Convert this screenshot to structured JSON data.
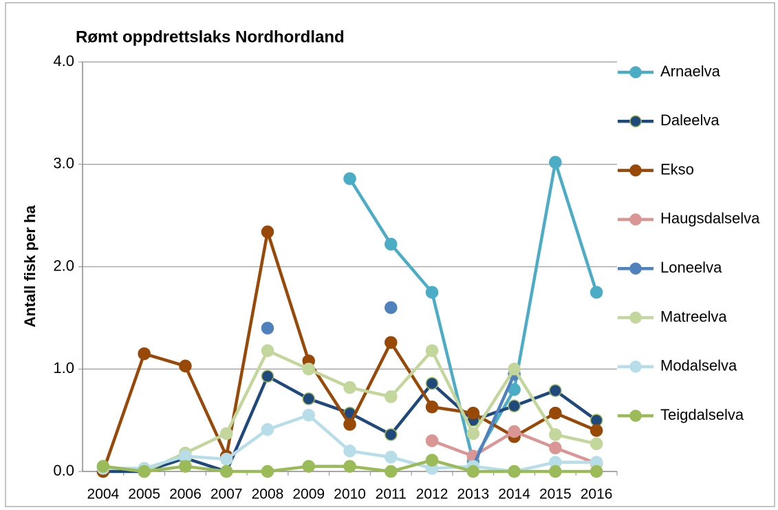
{
  "chart_data": {
    "type": "line",
    "title": "Rømt oppdrettslaks Nordhordland",
    "y_label": "Antall fisk per ha",
    "categories": [
      "2004",
      "2005",
      "2006",
      "2007",
      "2008",
      "2009",
      "2010",
      "2011",
      "2012",
      "2013",
      "2014",
      "2015",
      "2016"
    ],
    "ylim": [
      0,
      4
    ],
    "yticks": [
      {
        "value": 0,
        "label": "0.0"
      },
      {
        "value": 1,
        "label": "1.0"
      },
      {
        "value": 2,
        "label": "2.0"
      },
      {
        "value": 3,
        "label": "3.0"
      },
      {
        "value": 4,
        "label": "4.0"
      }
    ],
    "grid": true,
    "legend": "right",
    "series": [
      {
        "name": "Arnaelva",
        "color": "#4bacc6",
        "values": [
          null,
          null,
          null,
          null,
          null,
          null,
          2.86,
          2.22,
          1.75,
          0.1,
          0.8,
          3.02,
          1.75
        ]
      },
      {
        "name": "Daleelva",
        "color": "#1f497d",
        "values": [
          0,
          0,
          0.13,
          0,
          0.93,
          0.71,
          0.57,
          0.36,
          0.86,
          0.5,
          0.64,
          0.79,
          0.5
        ]
      },
      {
        "name": "Ekso",
        "color": "#984807",
        "values": [
          0,
          1.15,
          1.03,
          0.15,
          2.34,
          1.08,
          0.46,
          1.26,
          0.63,
          0.57,
          0.34,
          0.57,
          0.4
        ]
      },
      {
        "name": "Haugsdalselva",
        "color": "#d99694",
        "values": [
          null,
          null,
          null,
          null,
          null,
          null,
          null,
          null,
          0.3,
          0.15,
          0.39,
          0.23,
          0.08
        ]
      },
      {
        "name": "Loneelva",
        "color": "#4f81bd",
        "values": [
          null,
          null,
          null,
          null,
          1.4,
          null,
          null,
          1.6,
          null,
          0.05,
          0.95,
          null,
          null
        ]
      },
      {
        "name": "Matreelva",
        "color": "#c3d69b",
        "values": [
          0.05,
          0,
          0.18,
          0.37,
          1.18,
          1.0,
          0.82,
          0.73,
          1.18,
          0.37,
          1.0,
          0.36,
          0.27
        ]
      },
      {
        "name": "Modalselva",
        "color": "#b7dee8",
        "values": [
          0.03,
          0.03,
          0.15,
          0.12,
          0.41,
          0.55,
          0.2,
          0.14,
          0.03,
          0.05,
          0,
          0.09,
          0.09
        ]
      },
      {
        "name": "Teigdalselva",
        "color": "#9bbb59",
        "values": [
          0.05,
          0,
          0.05,
          0,
          0,
          0.05,
          0.05,
          0,
          0.11,
          0,
          0,
          0,
          0
        ]
      }
    ]
  }
}
